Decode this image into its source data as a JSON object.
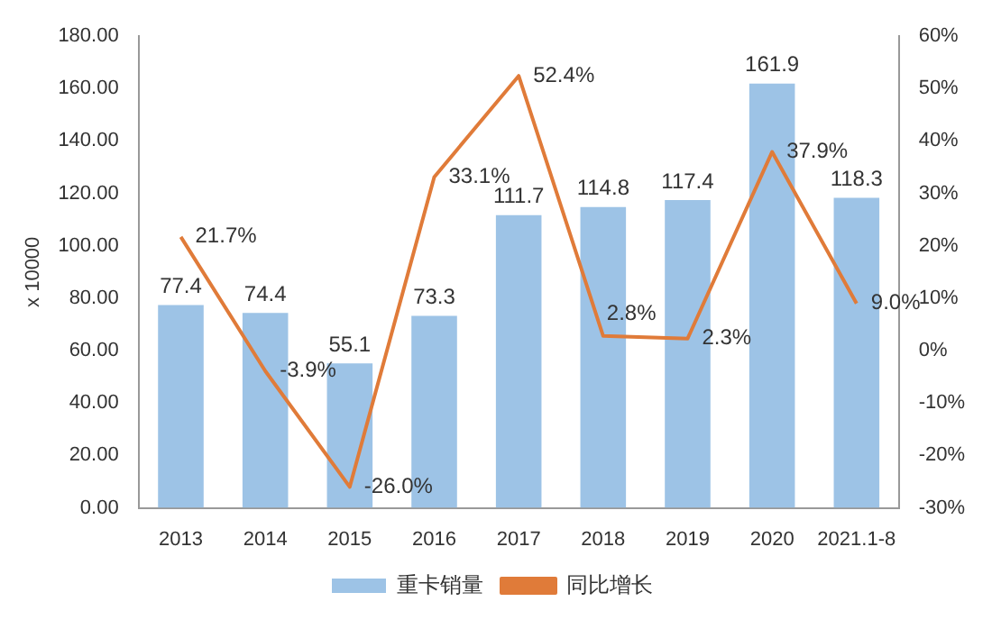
{
  "chart_data": {
    "type": "bar",
    "ylabel": "x 10000",
    "categories": [
      "2013",
      "2014",
      "2015",
      "2016",
      "2017",
      "2018",
      "2019",
      "2020",
      "2021.1-8"
    ],
    "series": [
      {
        "name": "重卡销量",
        "color": "#9dc3e6",
        "values": [
          77.4,
          74.4,
          55.1,
          73.3,
          111.7,
          114.8,
          117.4,
          161.9,
          118.3
        ],
        "value_labels": [
          "77.4",
          "74.4",
          "55.1",
          "73.3",
          "111.7",
          "114.8",
          "117.4",
          "161.9",
          "118.3"
        ]
      },
      {
        "name": "同比增长",
        "type": "line",
        "axis": "y2",
        "color": "#e07b39",
        "values": [
          21.7,
          -3.9,
          -26.0,
          33.1,
          52.4,
          2.8,
          2.3,
          37.9,
          9.0
        ],
        "value_labels": [
          "21.7%",
          "-3.9%",
          "-26.0%",
          "33.1%",
          "52.4%",
          "2.8%",
          "2.3%",
          "37.9%",
          "9.0%"
        ]
      }
    ],
    "ylim": [
      0,
      180
    ],
    "yticks": [
      {
        "value": 0,
        "label": "0.00"
      },
      {
        "value": 20,
        "label": "20.00"
      },
      {
        "value": 40,
        "label": "40.00"
      },
      {
        "value": 60,
        "label": "60.00"
      },
      {
        "value": 80,
        "label": "80.00"
      },
      {
        "value": 100,
        "label": "100.00"
      },
      {
        "value": 120,
        "label": "120.00"
      },
      {
        "value": 140,
        "label": "140.00"
      },
      {
        "value": 160,
        "label": "160.00"
      },
      {
        "value": 180,
        "label": "180.00"
      }
    ],
    "y2lim": [
      -30,
      60
    ],
    "y2ticks": [
      {
        "value": -30,
        "label": "-30%"
      },
      {
        "value": -20,
        "label": "-20%"
      },
      {
        "value": -10,
        "label": "-10%"
      },
      {
        "value": 0,
        "label": "0%"
      },
      {
        "value": 10,
        "label": "10%"
      },
      {
        "value": 20,
        "label": "20%"
      },
      {
        "value": 30,
        "label": "30%"
      },
      {
        "value": 40,
        "label": "40%"
      },
      {
        "value": 50,
        "label": "50%"
      },
      {
        "value": 60,
        "label": "60%"
      }
    ],
    "grid": false,
    "legend": "bottom",
    "marker": "none"
  }
}
